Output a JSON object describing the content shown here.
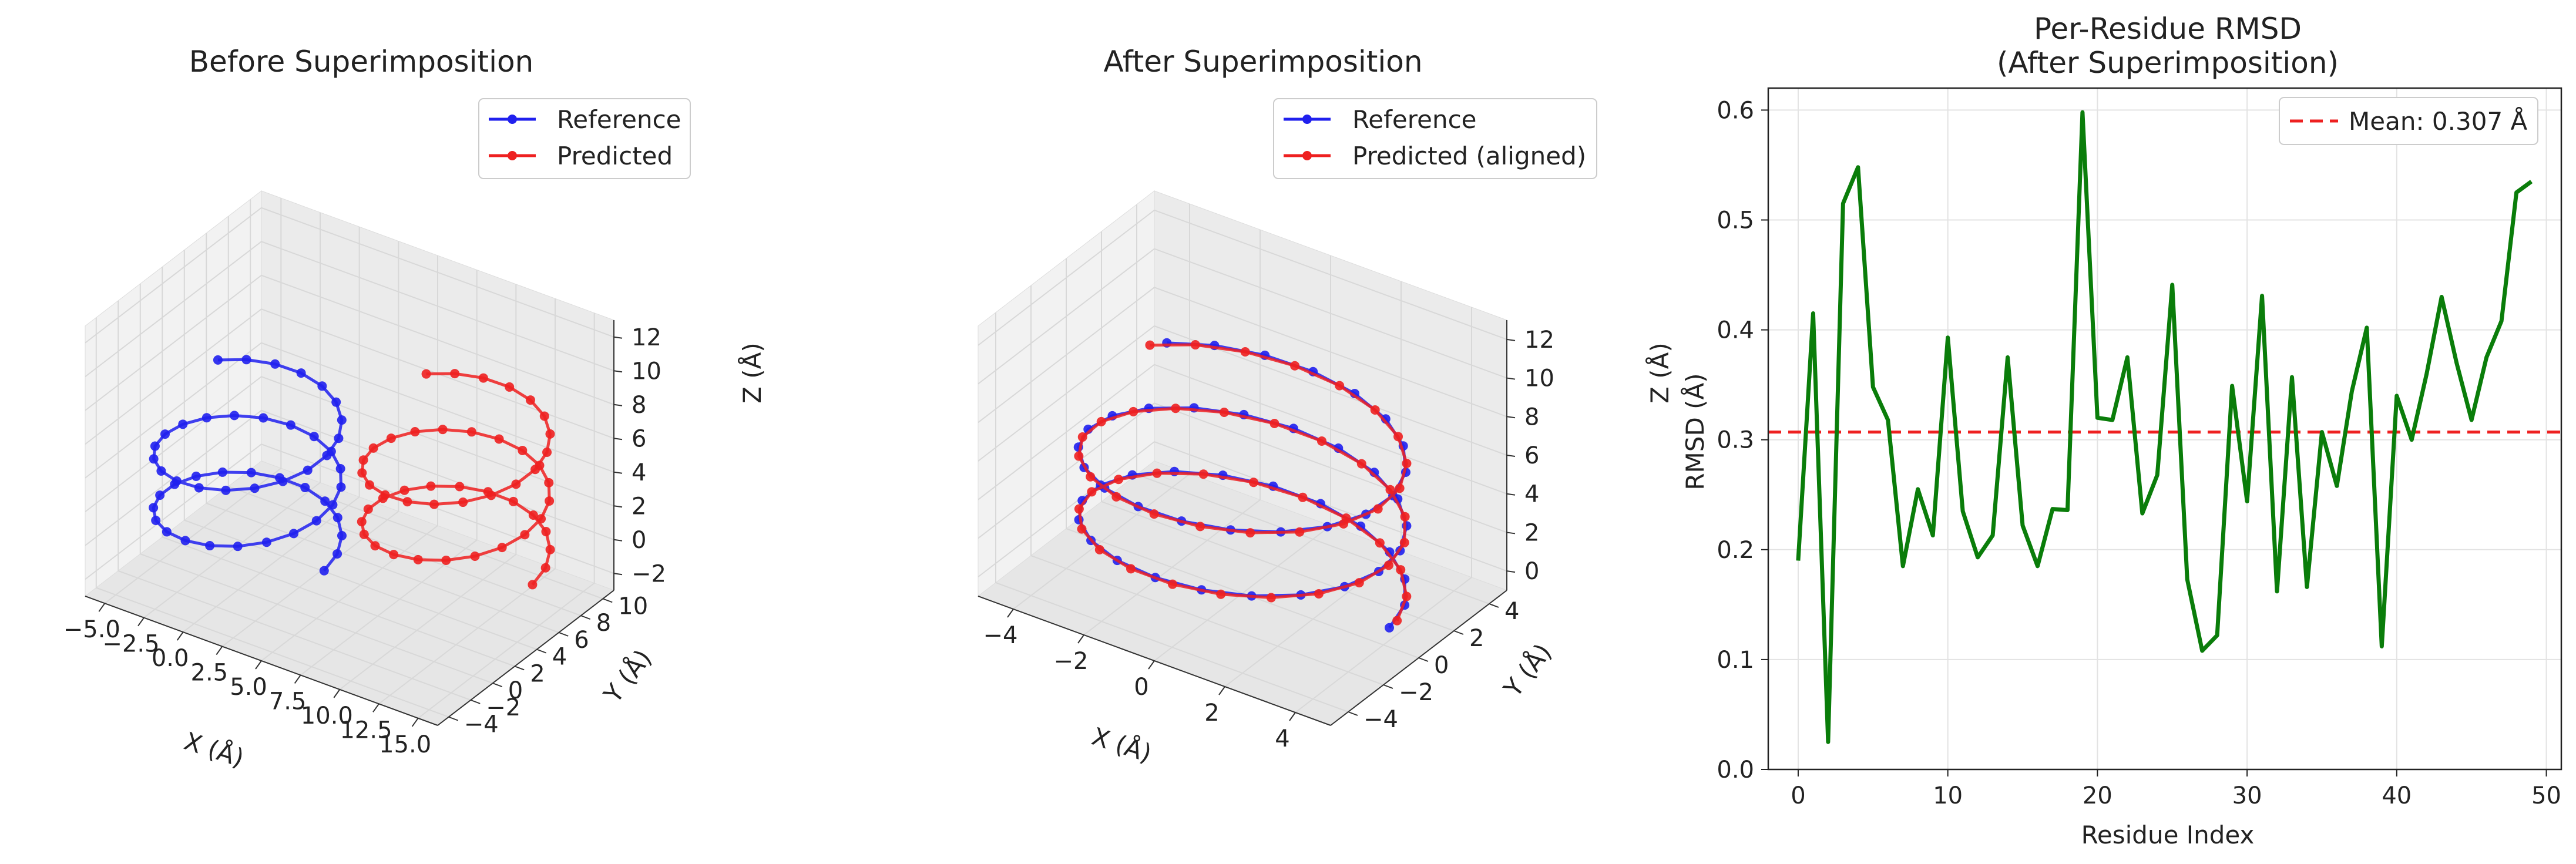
{
  "colors": {
    "reference": "#2020ee",
    "predicted": "#ee2020",
    "rmsd_line": "#0a7d0a",
    "mean_line": "#ee2020",
    "pane": "#f0f0f0",
    "grid": "#d8d8d8"
  },
  "chart_data": [
    {
      "type": "line3d",
      "title": "Before Superimposition",
      "xlabel": "X (Å)",
      "ylabel": "Y (Å)",
      "zlabel": "Z (Å)",
      "xticks": [
        "−5.0",
        "−2.5",
        "0.0",
        "2.5",
        "5.0",
        "7.5",
        "10.0",
        "12.5",
        "15.0"
      ],
      "yticks": [
        "−4",
        "−2",
        "0",
        "2",
        "4",
        "6",
        "8",
        "10"
      ],
      "zticks": [
        "−2",
        "0",
        "2",
        "4",
        "6",
        "8",
        "10",
        "12"
      ],
      "legend": [
        "Reference",
        "Predicted"
      ],
      "legend_position": "top-right",
      "series": [
        {
          "name": "Reference",
          "helix": {
            "center_x": 0,
            "center_y": 0,
            "radius": 5,
            "z_start": 0,
            "z_end": 8,
            "turns": 2.4,
            "points": 50
          }
        },
        {
          "name": "Predicted",
          "helix": {
            "center_x": 10,
            "center_y": 5,
            "radius": 5,
            "z_start": 0,
            "z_end": 8,
            "turns": 2.4,
            "points": 50
          }
        }
      ]
    },
    {
      "type": "line3d",
      "title": "After Superimposition",
      "xlabel": "X (Å)",
      "ylabel": "Y (Å)",
      "zlabel": "Z (Å)",
      "xticks": [
        "−4",
        "−2",
        "0",
        "2",
        "4"
      ],
      "yticks": [
        "−4",
        "−2",
        "0",
        "2",
        "4"
      ],
      "zticks": [
        "0",
        "2",
        "4",
        "6",
        "8",
        "10",
        "12"
      ],
      "legend": [
        "Reference",
        "Predicted (aligned)"
      ],
      "legend_position": "top-right",
      "series": [
        {
          "name": "Reference",
          "helix": {
            "center_x": 0,
            "center_y": 0,
            "radius": 5,
            "z_start": 0,
            "z_end": 8,
            "turns": 2.4,
            "points": 50
          }
        },
        {
          "name": "Predicted (aligned)",
          "helix": {
            "center_x": 0,
            "center_y": 0,
            "radius": 5,
            "z_start": 0,
            "z_end": 8,
            "turns": 2.4,
            "points": 50
          }
        }
      ]
    },
    {
      "type": "line",
      "title": "Per-Residue RMSD",
      "subtitle": "(After Superimposition)",
      "xlabel": "Residue Index",
      "ylabel": "RMSD (Å)",
      "xlim": [
        -2,
        51
      ],
      "ylim": [
        0,
        0.62
      ],
      "xticks": [
        0,
        10,
        20,
        30,
        40,
        50
      ],
      "yticks": [
        0.0,
        0.1,
        0.2,
        0.3,
        0.4,
        0.5,
        0.6
      ],
      "ytick_labels": [
        "0.0",
        "0.1",
        "0.2",
        "0.3",
        "0.4",
        "0.5",
        "0.6"
      ],
      "grid": true,
      "legend_position": "top-right",
      "mean": {
        "label": "Mean: 0.307 Å",
        "value": 0.307
      },
      "x": [
        0,
        1,
        2,
        3,
        4,
        5,
        6,
        7,
        8,
        9,
        10,
        11,
        12,
        13,
        14,
        15,
        16,
        17,
        18,
        19,
        20,
        21,
        22,
        23,
        24,
        25,
        26,
        27,
        28,
        29,
        30,
        31,
        32,
        33,
        34,
        35,
        36,
        37,
        38,
        39,
        40,
        41,
        42,
        43,
        44,
        45,
        46,
        47,
        48,
        49
      ],
      "values": [
        0.19,
        0.415,
        0.025,
        0.515,
        0.548,
        0.348,
        0.318,
        0.185,
        0.255,
        0.213,
        0.393,
        0.235,
        0.193,
        0.213,
        0.375,
        0.222,
        0.185,
        0.237,
        0.236,
        0.598,
        0.32,
        0.318,
        0.375,
        0.233,
        0.268,
        0.441,
        0.173,
        0.108,
        0.122,
        0.349,
        0.244,
        0.431,
        0.162,
        0.357,
        0.166,
        0.307,
        0.258,
        0.344,
        0.402,
        0.112,
        0.34,
        0.3,
        0.36,
        0.43,
        0.37,
        0.318,
        0.375,
        0.408,
        0.525,
        0.535
      ]
    }
  ]
}
